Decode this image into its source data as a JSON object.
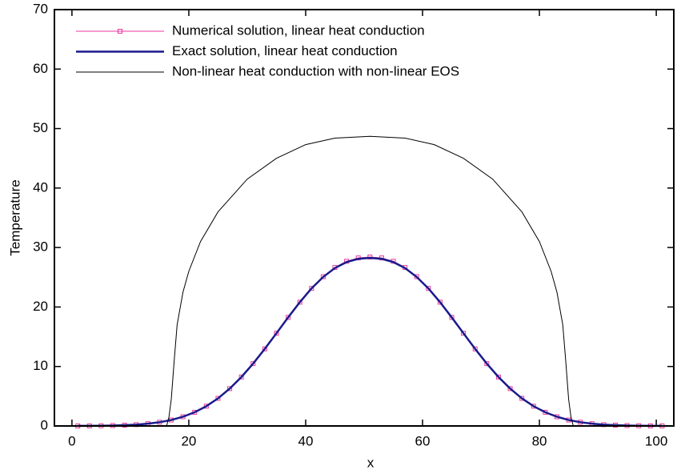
{
  "chart_data": {
    "type": "line",
    "x_label": "x",
    "y_label": "Temperature",
    "xlim": [
      -3,
      103
    ],
    "ylim": [
      0,
      70
    ],
    "xticks": [
      0,
      20,
      40,
      60,
      80,
      100
    ],
    "yticks": [
      0,
      10,
      20,
      30,
      40,
      50,
      60,
      70
    ],
    "legend": "upper left",
    "series": [
      {
        "name": "Numerical solution, linear heat conduction",
        "color": "#e8389c",
        "marker": "square",
        "x": [
          1,
          3,
          5,
          7,
          9,
          11,
          13,
          15,
          17,
          19,
          21,
          23,
          25,
          27,
          29,
          31,
          33,
          35,
          37,
          39,
          41,
          43,
          45,
          47,
          49,
          51,
          53,
          55,
          57,
          59,
          61,
          63,
          65,
          67,
          69,
          71,
          73,
          75,
          77,
          79,
          81,
          83,
          85,
          87,
          89,
          91,
          93,
          95,
          97,
          99,
          101
        ],
        "values": [
          0.01,
          0.02,
          0.04,
          0.07,
          0.13,
          0.22,
          0.38,
          0.63,
          1.0,
          1.55,
          2.3,
          3.32,
          4.64,
          6.28,
          8.23,
          10.48,
          12.96,
          15.59,
          18.25,
          20.81,
          23.13,
          25.1,
          26.64,
          27.69,
          28.25,
          28.4,
          28.25,
          27.69,
          26.64,
          25.1,
          23.13,
          20.81,
          18.25,
          15.59,
          12.96,
          10.48,
          8.23,
          6.28,
          4.64,
          3.32,
          2.3,
          1.55,
          1.0,
          0.63,
          0.38,
          0.22,
          0.13,
          0.07,
          0.04,
          0.02,
          0.01
        ]
      },
      {
        "name": "Exact solution, linear heat conduction",
        "color": "#1a1a8c",
        "width": 2.5,
        "x": [
          1,
          3,
          5,
          7,
          9,
          11,
          13,
          15,
          17,
          19,
          21,
          23,
          25,
          27,
          29,
          31,
          33,
          35,
          37,
          39,
          41,
          43,
          45,
          47,
          49,
          51,
          53,
          55,
          57,
          59,
          61,
          63,
          65,
          67,
          69,
          71,
          73,
          75,
          77,
          79,
          81,
          83,
          85,
          87,
          89,
          91,
          93,
          95,
          97,
          99,
          101
        ],
        "values": [
          0.01,
          0.02,
          0.04,
          0.07,
          0.13,
          0.22,
          0.38,
          0.63,
          1.0,
          1.55,
          2.3,
          3.32,
          4.64,
          6.28,
          8.23,
          10.48,
          12.96,
          15.59,
          18.25,
          20.81,
          23.13,
          25.05,
          26.55,
          27.55,
          28.1,
          28.25,
          28.1,
          27.55,
          26.55,
          25.05,
          23.13,
          20.81,
          18.25,
          15.59,
          12.96,
          10.48,
          8.23,
          6.28,
          4.64,
          3.32,
          2.3,
          1.55,
          1.0,
          0.63,
          0.38,
          0.22,
          0.13,
          0.07,
          0.04,
          0.02,
          0.01
        ]
      },
      {
        "name": "Non-linear heat conduction with non-linear EOS",
        "color": "#000000",
        "width": 1,
        "x": [
          0,
          16.2,
          16.6,
          17,
          17.5,
          18,
          19,
          20,
          22,
          25,
          30,
          35,
          40,
          45,
          51,
          57,
          62,
          67,
          72,
          77,
          80,
          82,
          83,
          84,
          84.5,
          85,
          85.4,
          85.8,
          102
        ],
        "values": [
          0,
          0,
          1.5,
          4.5,
          11,
          17,
          22.5,
          26,
          31,
          36,
          41.5,
          45,
          47.3,
          48.4,
          48.7,
          48.4,
          47.3,
          45,
          41.5,
          36,
          31,
          26,
          22.5,
          17,
          11,
          4.5,
          1.5,
          0,
          0
        ]
      }
    ]
  }
}
